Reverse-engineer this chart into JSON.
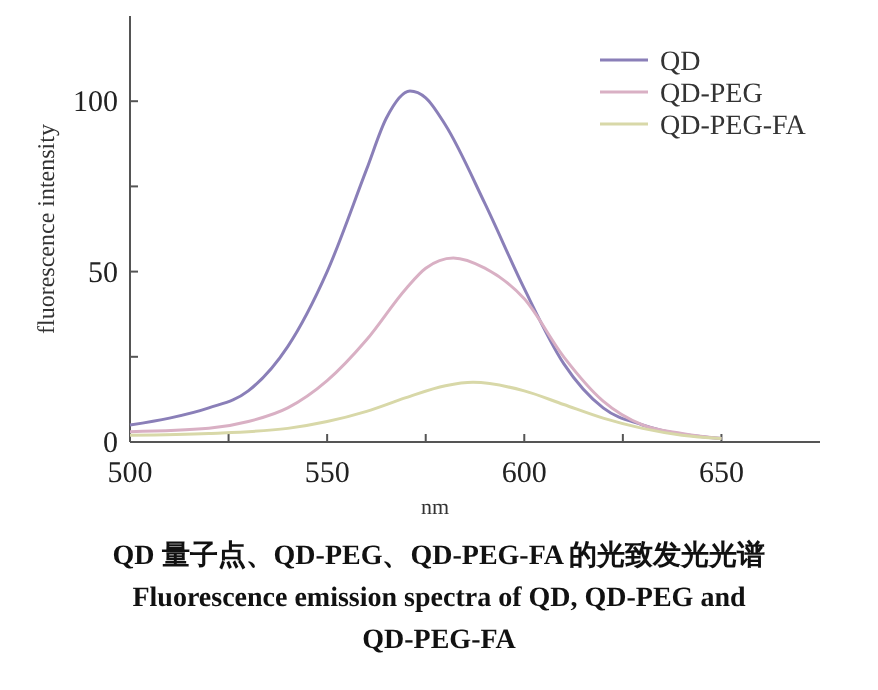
{
  "chart_data": {
    "type": "line",
    "xlabel": "nm",
    "ylabel": "fluorescence intensity",
    "xlim": [
      500,
      675
    ],
    "xticks": [
      500,
      {
        "value": 525,
        "label": null
      },
      550,
      {
        "value": 575,
        "label": null
      },
      600,
      {
        "value": 625,
        "label": null
      },
      650
    ],
    "ylim": [
      0,
      125
    ],
    "yticks": [
      0,
      {
        "value": 25,
        "label": null
      },
      50,
      {
        "value": 75,
        "label": null
      },
      100
    ],
    "legend": "top right",
    "grid": false,
    "marker": "none",
    "line_style": "solid",
    "series": [
      {
        "name": "QD",
        "color": "#8a7fb8",
        "x": [
          500,
          510,
          520,
          530,
          540,
          550,
          560,
          565,
          571,
          575,
          580,
          590,
          600,
          610,
          620,
          630,
          650
        ],
        "values": [
          5,
          7,
          10,
          15,
          28,
          50,
          80,
          95,
          103,
          101,
          93,
          70,
          45,
          23,
          10,
          5,
          1
        ]
      },
      {
        "name": "QD-PEG",
        "color": "#d9b0c4",
        "x": [
          500,
          520,
          530,
          540,
          550,
          560,
          570,
          575,
          582,
          590,
          600,
          610,
          620,
          630,
          640,
          650
        ],
        "values": [
          3,
          4,
          6,
          10,
          18,
          30,
          45,
          51,
          54,
          51,
          42,
          25,
          12,
          5,
          2.5,
          1
        ]
      },
      {
        "name": "QD-PEG-FA",
        "color": "#d8d8a8",
        "x": [
          500,
          520,
          540,
          550,
          560,
          570,
          580,
          587,
          600,
          610,
          620,
          630,
          640,
          650
        ],
        "values": [
          2,
          2.5,
          4,
          6,
          9,
          13,
          16.5,
          17.5,
          15,
          11,
          7,
          4,
          2,
          1
        ]
      }
    ],
    "annotations": [
      "QD 量子点、QD-PEG、QD-PEG-FA 的光致发光光谱",
      "Fluorescence emission spectra of QD, QD-PEG and",
      "QD-PEG-FA"
    ]
  }
}
